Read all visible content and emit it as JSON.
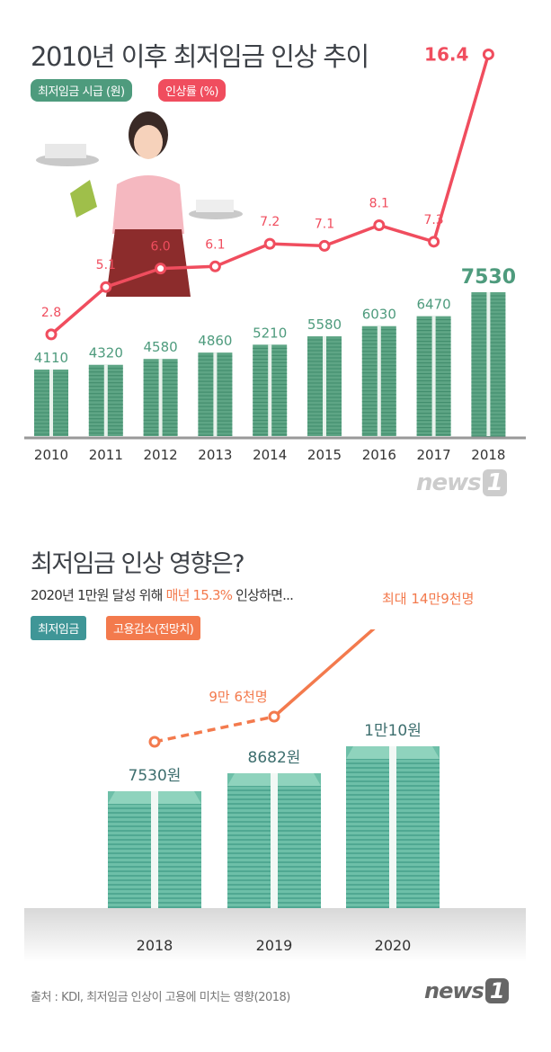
{
  "colors": {
    "green": "#4e9b7d",
    "red": "#f04d5e",
    "teal": "#3f9697",
    "orange": "#f37a4d",
    "text": "#3d4147"
  },
  "chart_data": [
    {
      "type": "bar+line",
      "title": "2010년 이후 최저임금 인상 추이",
      "categories": [
        "2010",
        "2011",
        "2012",
        "2013",
        "2014",
        "2015",
        "2016",
        "2017",
        "2018"
      ],
      "series": [
        {
          "name": "최저임금 시급 (원)",
          "type": "bar",
          "values": [
            4110,
            4320,
            4580,
            4860,
            5210,
            5580,
            6030,
            6470,
            7530
          ]
        },
        {
          "name": "인상률 (%)",
          "type": "line",
          "values": [
            2.8,
            5.1,
            6.0,
            6.1,
            7.2,
            7.1,
            8.1,
            7.3,
            16.4
          ]
        }
      ]
    },
    {
      "type": "bar+line",
      "title": "최저임금 인상 영향은?",
      "subtitle_parts": [
        "2020년 1만원 달성 위해 ",
        "매년 15.3%",
        " 인상하면..."
      ],
      "categories": [
        "2018",
        "2019",
        "2020"
      ],
      "series": [
        {
          "name": "최저임금",
          "type": "bar",
          "values": [
            7530,
            8682,
            10010
          ],
          "labels": [
            "7530원",
            "8682원",
            "1만10원"
          ]
        },
        {
          "name": "고용감소(전망치)",
          "type": "line",
          "values": [
            0,
            96000,
            149000
          ],
          "labels": [
            "",
            "9만 6천명",
            "최대 14만9천명"
          ]
        }
      ]
    }
  ],
  "logo": "news1",
  "source": "출처 : KDI, 최저임금 인상이 고용에 미치는 영향(2018)"
}
